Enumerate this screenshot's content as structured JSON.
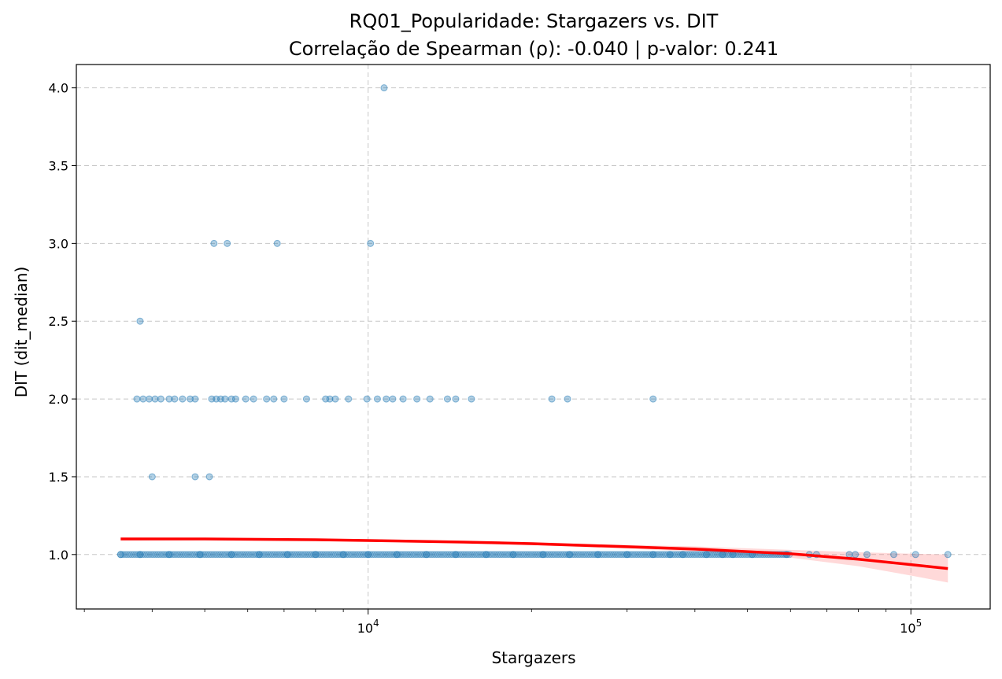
{
  "chart_data": {
    "type": "scatter",
    "title": "RQ01_Popularidade: Stargazers vs. DIT",
    "subtitle": "Correlação de Spearman (ρ): -0.040 | p-valor: 0.241",
    "xlabel": "Stargazers",
    "ylabel": "DIT (dit_median)",
    "x_scale": "log",
    "xlim": [
      2900,
      140000
    ],
    "ylim": [
      0.65,
      4.15
    ],
    "grid": true,
    "x_ticks": [
      {
        "value": 10000,
        "base": "10",
        "exp": "4"
      },
      {
        "value": 100000,
        "base": "10",
        "exp": "5"
      }
    ],
    "y_ticks": [
      "1.0",
      "1.5",
      "2.0",
      "2.5",
      "3.0",
      "3.5",
      "4.0"
    ],
    "colors": {
      "points": "#1f77b4",
      "trend": "#ff0000",
      "band": "#ff8080"
    },
    "series": [
      {
        "kind": "scatter",
        "points": [
          {
            "x": 10700,
            "y": 4.0
          },
          {
            "x": 5200,
            "y": 3.0
          },
          {
            "x": 5500,
            "y": 3.0
          },
          {
            "x": 6800,
            "y": 3.0
          },
          {
            "x": 10100,
            "y": 3.0
          },
          {
            "x": 3800,
            "y": 2.5
          },
          {
            "x": 3750,
            "y": 2.0
          },
          {
            "x": 3850,
            "y": 2.0
          },
          {
            "x": 3950,
            "y": 2.0
          },
          {
            "x": 4050,
            "y": 2.0
          },
          {
            "x": 4150,
            "y": 2.0
          },
          {
            "x": 4300,
            "y": 2.0
          },
          {
            "x": 4400,
            "y": 2.0
          },
          {
            "x": 4550,
            "y": 2.0
          },
          {
            "x": 4700,
            "y": 2.0
          },
          {
            "x": 4800,
            "y": 2.0
          },
          {
            "x": 5150,
            "y": 2.0
          },
          {
            "x": 5250,
            "y": 2.0
          },
          {
            "x": 5350,
            "y": 2.0
          },
          {
            "x": 5450,
            "y": 2.0
          },
          {
            "x": 5600,
            "y": 2.0
          },
          {
            "x": 5700,
            "y": 2.0
          },
          {
            "x": 5950,
            "y": 2.0
          },
          {
            "x": 6150,
            "y": 2.0
          },
          {
            "x": 6500,
            "y": 2.0
          },
          {
            "x": 6700,
            "y": 2.0
          },
          {
            "x": 7000,
            "y": 2.0
          },
          {
            "x": 7700,
            "y": 2.0
          },
          {
            "x": 8350,
            "y": 2.0
          },
          {
            "x": 8500,
            "y": 2.0
          },
          {
            "x": 8700,
            "y": 2.0
          },
          {
            "x": 9200,
            "y": 2.0
          },
          {
            "x": 9950,
            "y": 2.0
          },
          {
            "x": 10400,
            "y": 2.0
          },
          {
            "x": 10800,
            "y": 2.0
          },
          {
            "x": 11100,
            "y": 2.0
          },
          {
            "x": 11600,
            "y": 2.0
          },
          {
            "x": 12300,
            "y": 2.0
          },
          {
            "x": 13000,
            "y": 2.0
          },
          {
            "x": 14000,
            "y": 2.0
          },
          {
            "x": 14500,
            "y": 2.0
          },
          {
            "x": 15500,
            "y": 2.0
          },
          {
            "x": 21800,
            "y": 2.0
          },
          {
            "x": 23300,
            "y": 2.0
          },
          {
            "x": 33500,
            "y": 2.0
          },
          {
            "x": 4000,
            "y": 1.5
          },
          {
            "x": 4800,
            "y": 1.5
          },
          {
            "x": 5100,
            "y": 1.5
          },
          {
            "x": 3500,
            "y": 1.0
          },
          {
            "x": 3800,
            "y": 1.0
          },
          {
            "x": 4300,
            "y": 1.0
          },
          {
            "x": 4900,
            "y": 1.0
          },
          {
            "x": 5600,
            "y": 1.0
          },
          {
            "x": 6300,
            "y": 1.0
          },
          {
            "x": 7100,
            "y": 1.0
          },
          {
            "x": 8000,
            "y": 1.0
          },
          {
            "x": 9000,
            "y": 1.0
          },
          {
            "x": 10000,
            "y": 1.0
          },
          {
            "x": 11300,
            "y": 1.0
          },
          {
            "x": 12800,
            "y": 1.0
          },
          {
            "x": 14500,
            "y": 1.0
          },
          {
            "x": 16500,
            "y": 1.0
          },
          {
            "x": 18500,
            "y": 1.0
          },
          {
            "x": 21000,
            "y": 1.0
          },
          {
            "x": 23500,
            "y": 1.0
          },
          {
            "x": 26500,
            "y": 1.0
          },
          {
            "x": 30000,
            "y": 1.0
          },
          {
            "x": 33500,
            "y": 1.0
          },
          {
            "x": 36000,
            "y": 1.0
          },
          {
            "x": 38000,
            "y": 1.0
          },
          {
            "x": 42000,
            "y": 1.0
          },
          {
            "x": 45000,
            "y": 1.0
          },
          {
            "x": 47000,
            "y": 1.0
          },
          {
            "x": 51000,
            "y": 1.0
          },
          {
            "x": 59000,
            "y": 1.0
          },
          {
            "x": 65000,
            "y": 1.0
          },
          {
            "x": 67000,
            "y": 1.0
          },
          {
            "x": 77000,
            "y": 1.0
          },
          {
            "x": 79000,
            "y": 1.0
          },
          {
            "x": 83000,
            "y": 1.0
          },
          {
            "x": 93000,
            "y": 1.0
          },
          {
            "x": 102000,
            "y": 1.0
          },
          {
            "x": 117000,
            "y": 1.0
          }
        ]
      },
      {
        "kind": "trend",
        "points": [
          {
            "x": 3500,
            "y": 1.1
          },
          {
            "x": 5000,
            "y": 1.1
          },
          {
            "x": 8000,
            "y": 1.095
          },
          {
            "x": 10000,
            "y": 1.09
          },
          {
            "x": 15000,
            "y": 1.08
          },
          {
            "x": 20000,
            "y": 1.07
          },
          {
            "x": 30000,
            "y": 1.05
          },
          {
            "x": 40000,
            "y": 1.035
          },
          {
            "x": 60000,
            "y": 1.005
          },
          {
            "x": 80000,
            "y": 0.97
          },
          {
            "x": 100000,
            "y": 0.935
          },
          {
            "x": 117000,
            "y": 0.91
          }
        ],
        "band_upper": [
          1.11,
          1.107,
          1.1,
          1.097,
          1.087,
          1.08,
          1.062,
          1.052,
          1.03,
          1.015,
          1.005,
          1.0
        ],
        "band_lower": [
          1.09,
          1.093,
          1.09,
          1.083,
          1.073,
          1.06,
          1.038,
          1.018,
          0.98,
          0.925,
          0.865,
          0.82
        ]
      }
    ]
  }
}
